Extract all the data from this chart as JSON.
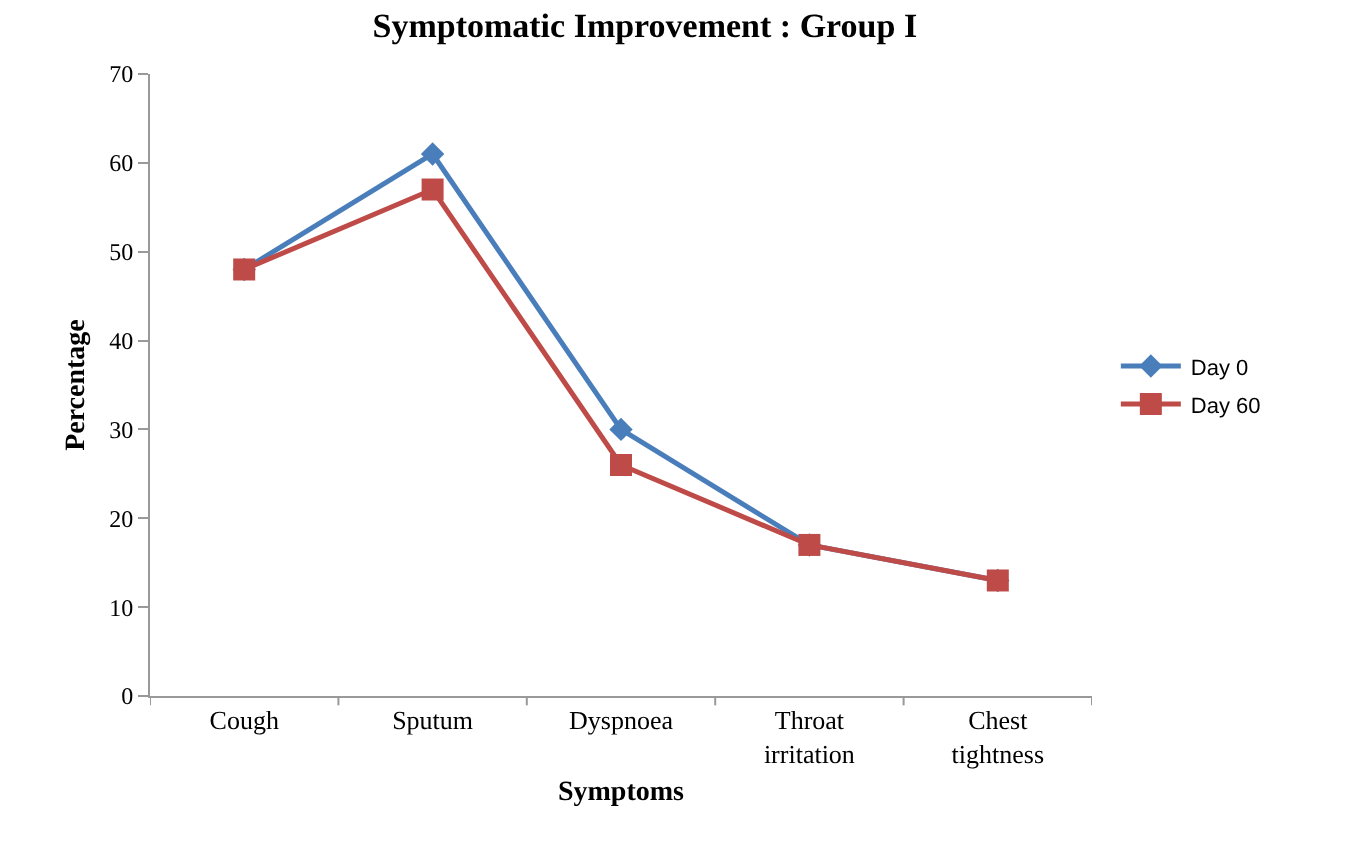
{
  "chart_data": {
    "type": "line",
    "title": "Symptomatic Improvement : Group I",
    "xlabel": "Symptoms",
    "ylabel": "Percentage",
    "categories": [
      "Cough",
      "Sputum",
      "Dyspnoea",
      "Throat irritation",
      "Chest tightness"
    ],
    "series": [
      {
        "name": "Day 0",
        "color": "#4a7ebb",
        "marker": "diamond",
        "values": [
          48,
          61,
          30,
          17,
          13
        ]
      },
      {
        "name": "Day 60",
        "color": "#be4b48",
        "marker": "square",
        "values": [
          48,
          57,
          26,
          17,
          13
        ]
      }
    ],
    "ylim": [
      0,
      70
    ],
    "yticks": [
      0,
      10,
      20,
      30,
      40,
      50,
      60,
      70
    ],
    "grid": false,
    "legend": "right",
    "line_style": "solid"
  }
}
